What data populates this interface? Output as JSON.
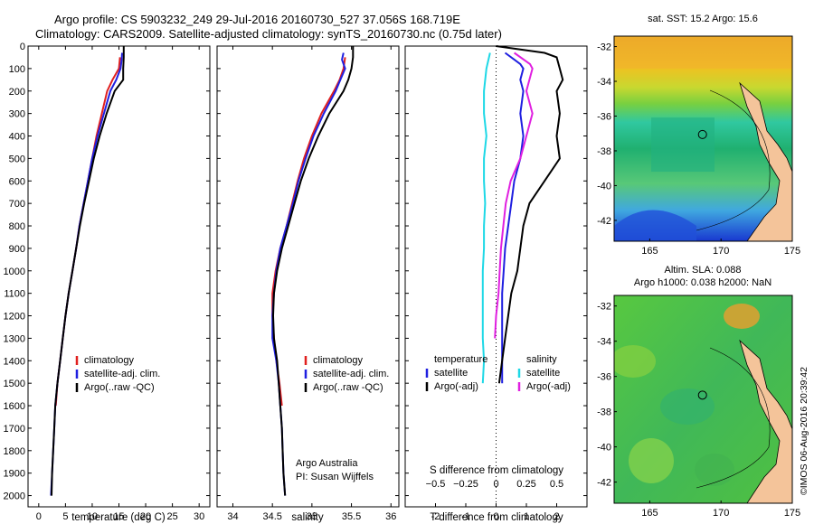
{
  "figure": {
    "title_line1": "Argo profile: CS 5903232_249 29-Jul-2016 20160730_527 37.056S 168.719E",
    "title_line2": "Climatology: CARS2009. Satellite-adjusted climatology: synTS_20160730.nc (0.75d later)",
    "credit": "Argo Australia",
    "pi": "PI: Susan Wijffels",
    "stamp": "©IMOS 06-Aug-2016 20:39:42"
  },
  "colors": {
    "climatology": "#e0201f",
    "satellite": "#1f1fe0",
    "argo": "#000000",
    "sal_satellite": "#1ed8e6",
    "sal_argo": "#e020e0"
  },
  "chart_data": [
    {
      "type": "line",
      "id": "temperature",
      "xlabel": "temperature (deg C)",
      "ylabel": "",
      "xlim": [
        -2,
        32
      ],
      "ylim": [
        0,
        2050
      ],
      "y_inverted": true,
      "xticks": [
        0,
        5,
        10,
        15,
        20,
        25,
        30
      ],
      "yticks": [
        0,
        100,
        200,
        300,
        400,
        500,
        600,
        700,
        800,
        900,
        1000,
        1100,
        1200,
        1300,
        1400,
        1500,
        1600,
        1700,
        1800,
        1900,
        2000
      ],
      "legend_placement": "lower-left",
      "series": [
        {
          "name": "climatology",
          "color_key": "climatology",
          "points": [
            [
              15.2,
              50
            ],
            [
              15.0,
              100
            ],
            [
              13.8,
              150
            ],
            [
              12.8,
              200
            ],
            [
              11.8,
              300
            ],
            [
              10.8,
              400
            ],
            [
              10.0,
              500
            ],
            [
              9.2,
              600
            ],
            [
              8.4,
              700
            ],
            [
              7.6,
              800
            ],
            [
              7.0,
              900
            ],
            [
              6.3,
              1000
            ],
            [
              5.6,
              1100
            ],
            [
              5.0,
              1200
            ],
            [
              4.5,
              1300
            ],
            [
              4.0,
              1400
            ],
            [
              3.5,
              1500
            ],
            [
              3.2,
              1600
            ]
          ]
        },
        {
          "name": "satellite-adj. clim.",
          "color_key": "satellite",
          "points": [
            [
              15.6,
              30
            ],
            [
              15.5,
              60
            ],
            [
              15.3,
              100
            ],
            [
              14.5,
              150
            ],
            [
              13.4,
              200
            ],
            [
              12.2,
              300
            ],
            [
              11.0,
              400
            ],
            [
              10.0,
              500
            ],
            [
              9.2,
              600
            ],
            [
              8.4,
              700
            ],
            [
              7.6,
              800
            ],
            [
              7.0,
              900
            ],
            [
              6.3,
              1000
            ],
            [
              5.6,
              1100
            ],
            [
              5.0,
              1200
            ],
            [
              4.5,
              1300
            ],
            [
              4.0,
              1400
            ],
            [
              3.5,
              1500
            ],
            [
              3.1,
              1600
            ],
            [
              2.9,
              1700
            ],
            [
              2.7,
              1800
            ],
            [
              2.5,
              1900
            ],
            [
              2.3,
              2000
            ]
          ]
        },
        {
          "name": "Argo(..raw -QC)",
          "color_key": "argo",
          "points": [
            [
              15.9,
              0
            ],
            [
              15.9,
              50
            ],
            [
              15.8,
              100
            ],
            [
              15.8,
              150
            ],
            [
              14.2,
              200
            ],
            [
              12.7,
              300
            ],
            [
              11.4,
              400
            ],
            [
              10.3,
              500
            ],
            [
              9.4,
              600
            ],
            [
              8.5,
              700
            ],
            [
              7.7,
              800
            ],
            [
              7.0,
              900
            ],
            [
              6.3,
              1000
            ],
            [
              5.6,
              1100
            ],
            [
              5.0,
              1200
            ],
            [
              4.5,
              1300
            ],
            [
              4.0,
              1400
            ],
            [
              3.5,
              1500
            ],
            [
              3.1,
              1600
            ],
            [
              2.9,
              1700
            ],
            [
              2.7,
              1800
            ],
            [
              2.5,
              1900
            ],
            [
              2.4,
              2000
            ]
          ]
        }
      ]
    },
    {
      "type": "line",
      "id": "salinity",
      "xlabel": "salinity",
      "xlim": [
        33.8,
        36.1
      ],
      "ylim": [
        0,
        2050
      ],
      "y_inverted": true,
      "xticks": [
        34,
        34.5,
        35,
        35.5,
        36
      ],
      "legend_placement": "lower-right",
      "series": [
        {
          "name": "climatology",
          "color_key": "climatology",
          "points": [
            [
              35.42,
              50
            ],
            [
              35.4,
              100
            ],
            [
              35.35,
              150
            ],
            [
              35.28,
              200
            ],
            [
              35.12,
              300
            ],
            [
              35.0,
              400
            ],
            [
              34.9,
              500
            ],
            [
              34.82,
              600
            ],
            [
              34.75,
              700
            ],
            [
              34.68,
              800
            ],
            [
              34.6,
              900
            ],
            [
              34.54,
              1000
            ],
            [
              34.5,
              1100
            ],
            [
              34.5,
              1200
            ],
            [
              34.52,
              1300
            ],
            [
              34.55,
              1400
            ],
            [
              34.59,
              1500
            ],
            [
              34.62,
              1600
            ]
          ]
        },
        {
          "name": "satellite-adj. clim.",
          "color_key": "satellite",
          "points": [
            [
              35.4,
              30
            ],
            [
              35.38,
              60
            ],
            [
              35.42,
              100
            ],
            [
              35.36,
              150
            ],
            [
              35.3,
              200
            ],
            [
              35.15,
              300
            ],
            [
              35.02,
              400
            ],
            [
              34.92,
              500
            ],
            [
              34.83,
              600
            ],
            [
              34.76,
              700
            ],
            [
              34.68,
              800
            ],
            [
              34.6,
              900
            ],
            [
              34.55,
              1000
            ],
            [
              34.52,
              1100
            ],
            [
              34.5,
              1200
            ],
            [
              34.5,
              1300
            ],
            [
              34.55,
              1400
            ],
            [
              34.58,
              1500
            ],
            [
              34.6,
              1600
            ],
            [
              34.62,
              1700
            ],
            [
              34.63,
              1800
            ],
            [
              34.64,
              1900
            ],
            [
              34.66,
              2000
            ]
          ]
        },
        {
          "name": "Argo(..raw -QC)",
          "color_key": "argo",
          "points": [
            [
              35.52,
              0
            ],
            [
              35.52,
              50
            ],
            [
              35.5,
              100
            ],
            [
              35.46,
              150
            ],
            [
              35.4,
              200
            ],
            [
              35.22,
              300
            ],
            [
              35.08,
              400
            ],
            [
              34.96,
              500
            ],
            [
              34.86,
              600
            ],
            [
              34.78,
              700
            ],
            [
              34.7,
              800
            ],
            [
              34.62,
              900
            ],
            [
              34.56,
              1000
            ],
            [
              34.52,
              1100
            ],
            [
              34.51,
              1200
            ],
            [
              34.52,
              1300
            ],
            [
              34.56,
              1400
            ],
            [
              34.58,
              1500
            ],
            [
              34.6,
              1600
            ],
            [
              34.62,
              1700
            ],
            [
              34.63,
              1800
            ],
            [
              34.64,
              1900
            ],
            [
              34.66,
              2000
            ]
          ]
        }
      ]
    },
    {
      "type": "line",
      "id": "difference",
      "xlabel": "T difference from climatology",
      "x2label": "S difference from climatology",
      "xlim": [
        -3,
        3
      ],
      "x2lim": [
        -0.75,
        0.75
      ],
      "ylim": [
        0,
        2050
      ],
      "y_inverted": true,
      "xticks": [
        -2,
        -1,
        0,
        1,
        2
      ],
      "x2ticks": [
        -0.5,
        -0.25,
        0,
        0.25,
        0.5
      ],
      "x2ticklabels": [
        "−0.5",
        "−0.25",
        "0",
        "0.25",
        "0.5"
      ],
      "legend_placement": "lower",
      "legend_titles": [
        "temperature",
        "salinity"
      ],
      "series": [
        {
          "name": "satellite",
          "group": "temperature",
          "color_key": "satellite",
          "points": [
            [
              0.3,
              30
            ],
            [
              0.6,
              60
            ],
            [
              0.8,
              80
            ],
            [
              0.9,
              100
            ],
            [
              0.8,
              150
            ],
            [
              0.9,
              200
            ],
            [
              0.8,
              300
            ],
            [
              0.9,
              400
            ],
            [
              0.8,
              500
            ],
            [
              0.6,
              600
            ],
            [
              0.5,
              700
            ],
            [
              0.4,
              800
            ],
            [
              0.3,
              900
            ],
            [
              0.25,
              1000
            ],
            [
              0.2,
              1100
            ],
            [
              0.2,
              1200
            ],
            [
              0.2,
              1300
            ],
            [
              0.2,
              1400
            ],
            [
              0.2,
              1500
            ]
          ]
        },
        {
          "name": "Argo(-adj)",
          "group": "temperature",
          "color_key": "argo",
          "points": [
            [
              0,
              0
            ],
            [
              1.6,
              30
            ],
            [
              2.0,
              50
            ],
            [
              2.1,
              100
            ],
            [
              2.2,
              150
            ],
            [
              2.0,
              200
            ],
            [
              2.1,
              300
            ],
            [
              2.0,
              400
            ],
            [
              2.1,
              500
            ],
            [
              1.6,
              600
            ],
            [
              1.1,
              700
            ],
            [
              0.9,
              800
            ],
            [
              0.8,
              900
            ],
            [
              0.7,
              1000
            ],
            [
              0.5,
              1100
            ],
            [
              0.4,
              1200
            ],
            [
              0.3,
              1300
            ],
            [
              0.2,
              1400
            ],
            [
              0.1,
              1500
            ]
          ]
        },
        {
          "name": "satellite",
          "group": "salinity",
          "color_key": "sal_satellite",
          "points": [
            [
              -0.05,
              30
            ],
            [
              -0.08,
              100
            ],
            [
              -0.1,
              200
            ],
            [
              -0.1,
              300
            ],
            [
              -0.08,
              400
            ],
            [
              -0.1,
              500
            ],
            [
              -0.1,
              600
            ],
            [
              -0.09,
              700
            ],
            [
              -0.1,
              800
            ],
            [
              -0.1,
              900
            ],
            [
              -0.11,
              1000
            ],
            [
              -0.11,
              1100
            ],
            [
              -0.11,
              1200
            ],
            [
              -0.11,
              1300
            ],
            [
              -0.1,
              1400
            ],
            [
              -0.11,
              1500
            ]
          ]
        },
        {
          "name": "Argo(-adj)",
          "group": "salinity",
          "color_key": "sal_argo",
          "points": [
            [
              0.15,
              30
            ],
            [
              0.28,
              80
            ],
            [
              0.3,
              100
            ],
            [
              0.25,
              200
            ],
            [
              0.3,
              300
            ],
            [
              0.25,
              400
            ],
            [
              0.2,
              500
            ],
            [
              0.12,
              600
            ],
            [
              0.08,
              700
            ],
            [
              0.06,
              800
            ],
            [
              0.04,
              900
            ],
            [
              0.03,
              1000
            ],
            [
              0.02,
              1100
            ],
            [
              0,
              1200
            ],
            [
              -0.01,
              1300
            ]
          ]
        }
      ]
    },
    {
      "type": "heatmap",
      "id": "sst_map",
      "title": "sat. SST: 15.2 Argo: 15.6",
      "xlim": [
        162.5,
        175
      ],
      "ylim": [
        -43.2,
        -31.4
      ],
      "xticks": [
        165,
        170,
        175
      ],
      "yticks": [
        -32,
        -34,
        -36,
        -38,
        -40,
        -42
      ],
      "marker": [
        168.7,
        -37.06
      ]
    },
    {
      "type": "heatmap",
      "id": "sla_map",
      "title_line1": "Altim. SLA: 0.088",
      "title_line2": "Argo h1000: 0.038 h2000: NaN",
      "xlim": [
        162.5,
        175
      ],
      "ylim": [
        -43.2,
        -31.4
      ],
      "xticks": [
        165,
        170,
        175
      ],
      "yticks": [
        -32,
        -34,
        -36,
        -38,
        -40,
        -42
      ],
      "marker": [
        168.7,
        -37.06
      ]
    }
  ]
}
